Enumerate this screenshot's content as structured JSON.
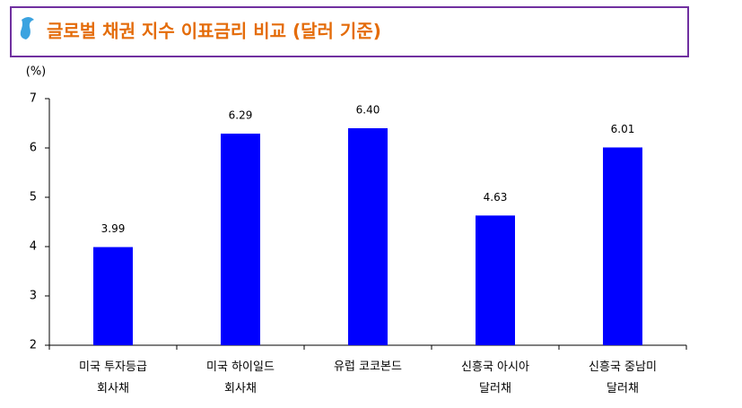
{
  "chart_data": {
    "type": "bar",
    "title": "글로벌 채권 지수 이표금리 비교 (달러 기준)",
    "y_label": "(%)",
    "categories": [
      "미국 투자등급\n회사채",
      "미국 하이일드\n회사채",
      "유럽 코코본드",
      "신흥국 아시아\n달러채",
      "신흥국 중남미\n달러채"
    ],
    "values": [
      3.99,
      6.29,
      6.4,
      4.63,
      6.01
    ],
    "value_labels": [
      "3.99",
      "6.29",
      "6.40",
      "4.63",
      "6.01"
    ],
    "color": "#0000ff",
    "ylim": [
      2,
      7
    ],
    "yticks": [
      2,
      3,
      4,
      5,
      6,
      7
    ],
    "grid": false
  }
}
